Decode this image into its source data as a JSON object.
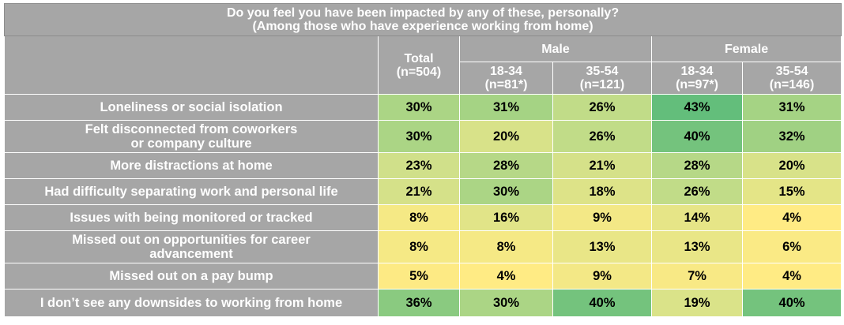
{
  "chart_data": {
    "type": "table",
    "title": "Do you feel you have been impacted by any of these, personally?",
    "subtitle": "(Among those who have experience working from home)",
    "groups": [
      "Male",
      "Female"
    ],
    "columns": [
      {
        "label": "Total",
        "n": "(n=504)"
      },
      {
        "label": "18-34",
        "n": "(n=81*)"
      },
      {
        "label": "35-54",
        "n": "(n=121)"
      },
      {
        "label": "18-34",
        "n": "(n=97*)"
      },
      {
        "label": "35-54",
        "n": "(n=146)"
      }
    ],
    "rows": [
      {
        "label": [
          "Loneliness or social isolation"
        ],
        "values": [
          30,
          31,
          26,
          43,
          31
        ]
      },
      {
        "label": [
          "Felt disconnected from coworkers",
          "or company culture"
        ],
        "values": [
          30,
          20,
          26,
          40,
          32
        ]
      },
      {
        "label": [
          "More distractions at home"
        ],
        "values": [
          23,
          28,
          21,
          28,
          20
        ]
      },
      {
        "label": [
          "Had difficulty separating work and personal life"
        ],
        "values": [
          21,
          30,
          18,
          26,
          15
        ]
      },
      {
        "label": [
          "Issues with being monitored or tracked"
        ],
        "values": [
          8,
          16,
          9,
          14,
          4
        ]
      },
      {
        "label": [
          "Missed out on opportunities for career",
          "advancement"
        ],
        "values": [
          8,
          8,
          13,
          13,
          6
        ]
      },
      {
        "label": [
          "Missed out on a pay bump"
        ],
        "values": [
          5,
          4,
          9,
          7,
          4
        ]
      },
      {
        "label": [
          "I don’t see any downsides to working from home"
        ],
        "values": [
          36,
          30,
          40,
          19,
          40
        ]
      }
    ],
    "unit": "%",
    "color_scale": {
      "low": "#ffeb84",
      "mid": "#cfe08a",
      "high": "#63be7b"
    }
  }
}
